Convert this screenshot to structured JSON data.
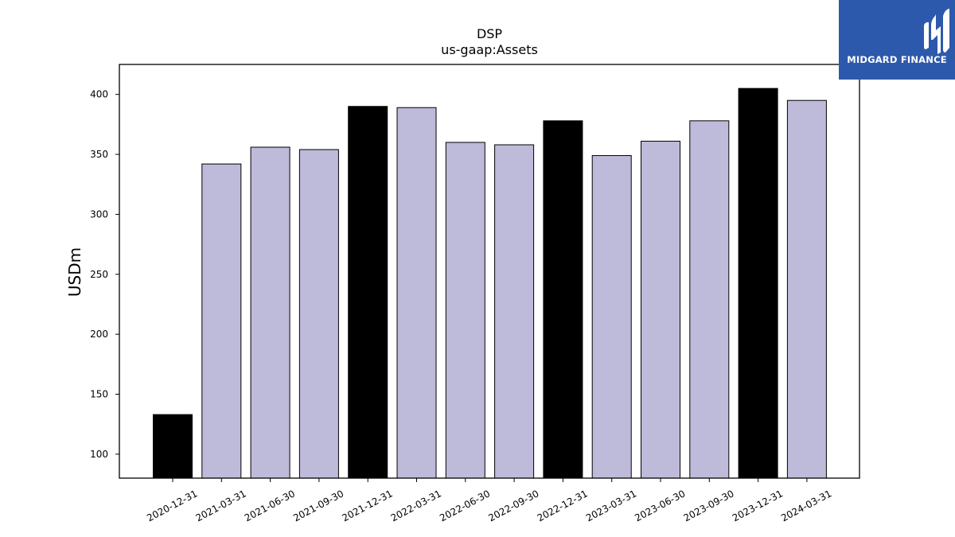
{
  "logo": {
    "text": "MIDGARD FINANCE",
    "icon": "midgard-logo-icon",
    "background": "#2d59ac"
  },
  "chart_data": {
    "type": "bar",
    "title": "DSP",
    "subtitle": "us-gaap:Assets",
    "xlabel": "",
    "ylabel": "USDm",
    "ylim": [
      80,
      425
    ],
    "yticks": [
      100,
      150,
      200,
      250,
      300,
      350,
      400
    ],
    "grid": false,
    "categories": [
      "2020-12-31",
      "2021-03-31",
      "2021-06-30",
      "2021-09-30",
      "2021-12-31",
      "2022-03-31",
      "2022-06-30",
      "2022-09-30",
      "2022-12-31",
      "2023-03-31",
      "2023-06-30",
      "2023-09-30",
      "2023-12-31",
      "2024-03-31"
    ],
    "values": [
      133,
      342,
      356,
      354,
      390,
      389,
      360,
      358,
      378,
      349,
      361,
      378,
      405,
      395
    ],
    "bar_colors": [
      "#000000",
      "#bebada",
      "#bebada",
      "#bebada",
      "#000000",
      "#bebada",
      "#bebada",
      "#bebada",
      "#000000",
      "#bebada",
      "#bebada",
      "#bebada",
      "#000000",
      "#bebada"
    ]
  }
}
